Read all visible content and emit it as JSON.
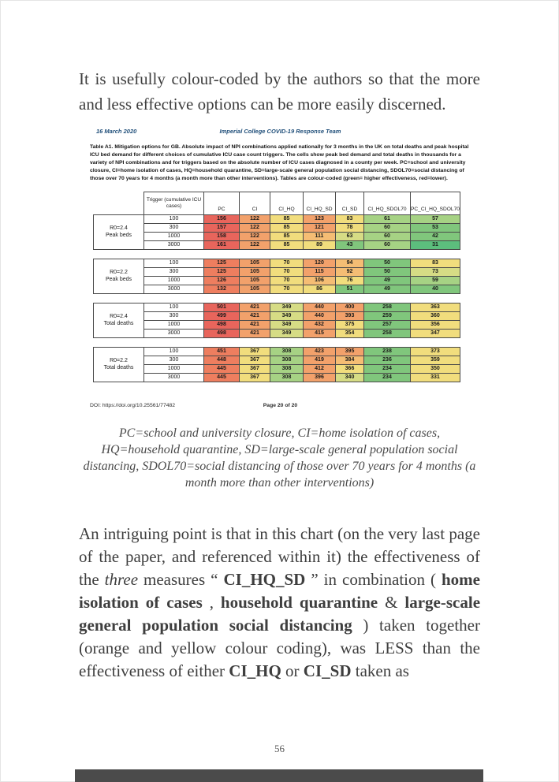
{
  "page": {
    "paragraph1": "It is usefully colour-coded by the authors so that the more and less effective options can be more easily discerned.",
    "page_number": "56"
  },
  "figure": {
    "header": {
      "date": "16 March 2020",
      "team": "Imperial College COVID-19 Response Team"
    },
    "caption": "Table A1. Mitigation options for GB. Absolute impact of NPI combinations applied nationally for 3 months in the UK on total deaths and peak hospital ICU bed demand for different choices of cumulative ICU case count triggers. The cells show peak bed demand and total deaths in thousands for a variety of NPI combinations and for triggers based on the absolute number of ICU cases diagnosed in a county per week. PC=school and university closure, CI=home isolation of cases, HQ=household quarantine, SD=large-scale general population social distancing, SDOL70=social distancing of those over 70 years for 4 months (a month more than other interventions). Tables are colour-coded (green= higher effectiveness, red=lower).",
    "footer": {
      "doi": "DOI: https://doi.org/10.25561/77482",
      "page": "Page 20 of 20"
    }
  },
  "chart_data": {
    "type": "table",
    "title": "Table A1. Mitigation options for GB",
    "units": "thousands",
    "columns": [
      "Trigger (cumulative ICU cases)",
      "PC",
      "CI",
      "CI_HQ",
      "CI_HQ_SD",
      "CI_SD",
      "CI_HQ_SDOL70",
      "PC_CI_HQ_SDOL70"
    ],
    "palette": {
      "r": "#E8655C",
      "ro": "#EE7E5F",
      "o": "#F2A16B",
      "lo": "#F5BD74",
      "y": "#F1DD7D",
      "yg": "#D6DC85",
      "lg": "#A6D284",
      "g": "#80C67C",
      "dg": "#5CBE7D"
    },
    "blocks": [
      {
        "label_line1": "R0=2.4",
        "label_line2": "Peak beds",
        "rows": [
          {
            "trigger": "100",
            "values": [
              156,
              122,
              85,
              123,
              83,
              61,
              57
            ],
            "colors": [
              "r",
              "o",
              "y",
              "o",
              "y",
              "lg",
              "lg"
            ]
          },
          {
            "trigger": "300",
            "values": [
              157,
              122,
              85,
              121,
              78,
              60,
              53
            ],
            "colors": [
              "r",
              "o",
              "y",
              "o",
              "y",
              "lg",
              "g"
            ]
          },
          {
            "trigger": "1000",
            "values": [
              158,
              122,
              85,
              111,
              63,
              60,
              42
            ],
            "colors": [
              "r",
              "o",
              "y",
              "lo",
              "yg",
              "lg",
              "g"
            ]
          },
          {
            "trigger": "3000",
            "values": [
              161,
              122,
              85,
              89,
              43,
              60,
              31
            ],
            "colors": [
              "r",
              "o",
              "y",
              "y",
              "g",
              "lg",
              "dg"
            ]
          }
        ]
      },
      {
        "label_line1": "R0=2.2",
        "label_line2": "Peak beds",
        "rows": [
          {
            "trigger": "100",
            "values": [
              125,
              105,
              70,
              120,
              94,
              50,
              83
            ],
            "colors": [
              "ro",
              "o",
              "y",
              "o",
              "lo",
              "g",
              "y"
            ]
          },
          {
            "trigger": "300",
            "values": [
              125,
              105,
              70,
              115,
              92,
              50,
              73
            ],
            "colors": [
              "ro",
              "o",
              "y",
              "o",
              "lo",
              "g",
              "yg"
            ]
          },
          {
            "trigger": "1000",
            "values": [
              126,
              105,
              70,
              106,
              76,
              49,
              59
            ],
            "colors": [
              "ro",
              "o",
              "y",
              "lo",
              "y",
              "g",
              "lg"
            ]
          },
          {
            "trigger": "3000",
            "values": [
              132,
              105,
              70,
              86,
              51,
              49,
              40
            ],
            "colors": [
              "ro",
              "o",
              "y",
              "y",
              "g",
              "g",
              "g"
            ]
          }
        ]
      },
      {
        "label_line1": "R0=2.4",
        "label_line2": "Total deaths",
        "rows": [
          {
            "trigger": "100",
            "values": [
              501,
              421,
              349,
              440,
              400,
              258,
              363
            ],
            "colors": [
              "r",
              "o",
              "yg",
              "o",
              "o",
              "g",
              "y"
            ]
          },
          {
            "trigger": "300",
            "values": [
              499,
              421,
              349,
              440,
              393,
              259,
              360
            ],
            "colors": [
              "r",
              "o",
              "yg",
              "o",
              "o",
              "g",
              "y"
            ]
          },
          {
            "trigger": "1000",
            "values": [
              498,
              421,
              349,
              432,
              375,
              257,
              356
            ],
            "colors": [
              "r",
              "o",
              "yg",
              "o",
              "y",
              "g",
              "y"
            ]
          },
          {
            "trigger": "3000",
            "values": [
              498,
              421,
              349,
              415,
              354,
              258,
              347
            ],
            "colors": [
              "r",
              "o",
              "yg",
              "o",
              "y",
              "g",
              "y"
            ]
          }
        ]
      },
      {
        "label_line1": "R0=2.2",
        "label_line2": "Total deaths",
        "rows": [
          {
            "trigger": "100",
            "values": [
              451,
              367,
              308,
              423,
              395,
              238,
              373
            ],
            "colors": [
              "ro",
              "y",
              "lg",
              "o",
              "o",
              "g",
              "y"
            ]
          },
          {
            "trigger": "300",
            "values": [
              448,
              367,
              308,
              419,
              384,
              236,
              359
            ],
            "colors": [
              "ro",
              "y",
              "lg",
              "o",
              "lo",
              "g",
              "y"
            ]
          },
          {
            "trigger": "1000",
            "values": [
              445,
              367,
              308,
              412,
              366,
              234,
              350
            ],
            "colors": [
              "ro",
              "y",
              "lg",
              "o",
              "y",
              "g",
              "y"
            ]
          },
          {
            "trigger": "3000",
            "values": [
              445,
              367,
              308,
              396,
              340,
              234,
              331
            ],
            "colors": [
              "ro",
              "y",
              "lg",
              "o",
              "yg",
              "g",
              "y"
            ]
          }
        ]
      }
    ]
  },
  "legend_italic": "PC=school and university closure, CI=home isolation of cases, HQ=household quarantine, SD=large-scale general population social distancing, SDOL70=social distancing of those over 70 years for 4 months (a month more than other interventions)",
  "paragraph2": {
    "runs": [
      {
        "t": "An intriguing point is that in this chart (on the very last page of the paper, and referenced within it) the effectiveness of the "
      },
      {
        "t": "three",
        "style": "italic"
      },
      {
        "t": " measures “ "
      },
      {
        "t": "CI_HQ_SD",
        "style": "bold"
      },
      {
        "t": " ” in combination ( "
      },
      {
        "t": "home isolation of cases",
        "style": "bold"
      },
      {
        "t": " , "
      },
      {
        "t": "household quarantine",
        "style": "bold"
      },
      {
        "t": " & "
      },
      {
        "t": "large-scale general population social distancing",
        "style": "bold"
      },
      {
        "t": " ) taken together (orange and yellow colour coding), was LESS than the effectiveness of either "
      },
      {
        "t": "CI_HQ",
        "style": "bold"
      },
      {
        "t": " or "
      },
      {
        "t": "CI_SD",
        "style": "bold"
      },
      {
        "t": " taken as"
      }
    ]
  }
}
